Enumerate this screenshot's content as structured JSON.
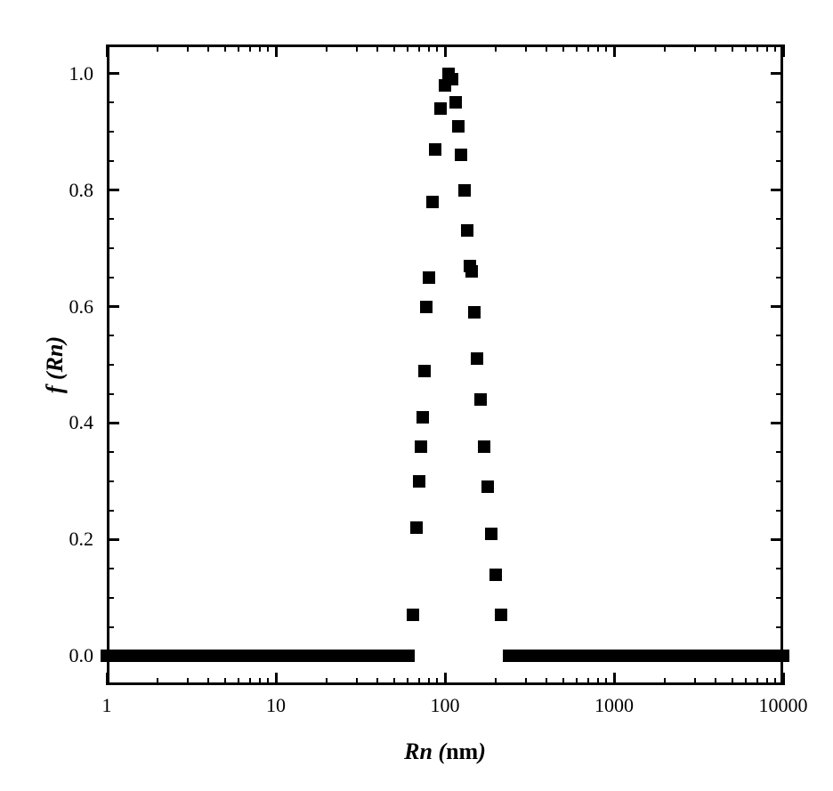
{
  "chart": {
    "type": "scatter",
    "xlabel": "Rn (nm)",
    "ylabel": "f (Rn)",
    "xscale": "log",
    "yscale": "linear",
    "xlim": [
      1,
      10000
    ],
    "ylim": [
      -0.05,
      1.05
    ],
    "background_color": "#ffffff",
    "border_color": "#000000",
    "border_width": 3,
    "label_fontsize": 26,
    "tick_fontsize": 22,
    "marker_style": "square",
    "marker_size": 14,
    "marker_color": "#000000",
    "y_ticks": [
      0.0,
      0.2,
      0.4,
      0.6,
      0.8,
      1.0
    ],
    "y_tick_labels": [
      "0.0",
      "0.2",
      "0.4",
      "0.6",
      "0.8",
      "1.0"
    ],
    "x_ticks": [
      1,
      10,
      100,
      1000,
      10000
    ],
    "x_tick_labels": [
      "1",
      "10",
      "100",
      "1000",
      "10000"
    ],
    "x_minor_ticks_per_decade": [
      2,
      3,
      4,
      5,
      6,
      7,
      8,
      9
    ],
    "y_minor_tick_step": 0.05,
    "major_tick_length": 14,
    "minor_tick_length": 8,
    "major_tick_width": 3,
    "minor_tick_width": 2,
    "data": [
      {
        "x": 1.0,
        "y": 0.0
      },
      {
        "x": 1.1,
        "y": 0.0
      },
      {
        "x": 1.2,
        "y": 0.0
      },
      {
        "x": 1.35,
        "y": 0.0
      },
      {
        "x": 1.5,
        "y": 0.0
      },
      {
        "x": 1.65,
        "y": 0.0
      },
      {
        "x": 1.8,
        "y": 0.0
      },
      {
        "x": 2.0,
        "y": 0.0
      },
      {
        "x": 2.2,
        "y": 0.0
      },
      {
        "x": 2.4,
        "y": 0.0
      },
      {
        "x": 2.7,
        "y": 0.0
      },
      {
        "x": 3.0,
        "y": 0.0
      },
      {
        "x": 3.3,
        "y": 0.0
      },
      {
        "x": 3.6,
        "y": 0.0
      },
      {
        "x": 4.0,
        "y": 0.0
      },
      {
        "x": 4.4,
        "y": 0.0
      },
      {
        "x": 4.8,
        "y": 0.0
      },
      {
        "x": 5.3,
        "y": 0.0
      },
      {
        "x": 5.8,
        "y": 0.0
      },
      {
        "x": 6.4,
        "y": 0.0
      },
      {
        "x": 7.0,
        "y": 0.0
      },
      {
        "x": 7.7,
        "y": 0.0
      },
      {
        "x": 8.5,
        "y": 0.0
      },
      {
        "x": 9.3,
        "y": 0.0
      },
      {
        "x": 10.2,
        "y": 0.0
      },
      {
        "x": 11.2,
        "y": 0.0
      },
      {
        "x": 12.3,
        "y": 0.0
      },
      {
        "x": 13.5,
        "y": 0.0
      },
      {
        "x": 14.8,
        "y": 0.0
      },
      {
        "x": 16.3,
        "y": 0.0
      },
      {
        "x": 17.9,
        "y": 0.0
      },
      {
        "x": 19.7,
        "y": 0.0
      },
      {
        "x": 21.6,
        "y": 0.0
      },
      {
        "x": 23.7,
        "y": 0.0
      },
      {
        "x": 26.0,
        "y": 0.0
      },
      {
        "x": 28.6,
        "y": 0.0
      },
      {
        "x": 31.4,
        "y": 0.0
      },
      {
        "x": 34.5,
        "y": 0.0
      },
      {
        "x": 37.9,
        "y": 0.0
      },
      {
        "x": 41.6,
        "y": 0.0
      },
      {
        "x": 45.7,
        "y": 0.0
      },
      {
        "x": 50.2,
        "y": 0.0
      },
      {
        "x": 55.1,
        "y": 0.0
      },
      {
        "x": 60.5,
        "y": 0.0
      },
      {
        "x": 65,
        "y": 0.07
      },
      {
        "x": 68,
        "y": 0.22
      },
      {
        "x": 70,
        "y": 0.3
      },
      {
        "x": 72,
        "y": 0.36
      },
      {
        "x": 74,
        "y": 0.41
      },
      {
        "x": 76,
        "y": 0.49
      },
      {
        "x": 78,
        "y": 0.6
      },
      {
        "x": 80,
        "y": 0.65
      },
      {
        "x": 84,
        "y": 0.78
      },
      {
        "x": 88,
        "y": 0.87
      },
      {
        "x": 94,
        "y": 0.94
      },
      {
        "x": 100,
        "y": 0.98
      },
      {
        "x": 105,
        "y": 1.0
      },
      {
        "x": 110,
        "y": 0.99
      },
      {
        "x": 115,
        "y": 0.95
      },
      {
        "x": 120,
        "y": 0.91
      },
      {
        "x": 125,
        "y": 0.86
      },
      {
        "x": 130,
        "y": 0.8
      },
      {
        "x": 135,
        "y": 0.73
      },
      {
        "x": 140,
        "y": 0.67
      },
      {
        "x": 143,
        "y": 0.66
      },
      {
        "x": 150,
        "y": 0.59
      },
      {
        "x": 155,
        "y": 0.51
      },
      {
        "x": 162,
        "y": 0.44
      },
      {
        "x": 170,
        "y": 0.36
      },
      {
        "x": 178,
        "y": 0.29
      },
      {
        "x": 188,
        "y": 0.21
      },
      {
        "x": 200,
        "y": 0.14
      },
      {
        "x": 215,
        "y": 0.07
      },
      {
        "x": 240,
        "y": 0.0
      },
      {
        "x": 263,
        "y": 0.0
      },
      {
        "x": 289,
        "y": 0.0
      },
      {
        "x": 318,
        "y": 0.0
      },
      {
        "x": 349,
        "y": 0.0
      },
      {
        "x": 383,
        "y": 0.0
      },
      {
        "x": 421,
        "y": 0.0
      },
      {
        "x": 462,
        "y": 0.0
      },
      {
        "x": 508,
        "y": 0.0
      },
      {
        "x": 558,
        "y": 0.0
      },
      {
        "x": 613,
        "y": 0.0
      },
      {
        "x": 673,
        "y": 0.0
      },
      {
        "x": 739,
        "y": 0.0
      },
      {
        "x": 812,
        "y": 0.0
      },
      {
        "x": 892,
        "y": 0.0
      },
      {
        "x": 980,
        "y": 0.0
      },
      {
        "x": 1076,
        "y": 0.0
      },
      {
        "x": 1182,
        "y": 0.0
      },
      {
        "x": 1298,
        "y": 0.0
      },
      {
        "x": 1426,
        "y": 0.0
      },
      {
        "x": 1566,
        "y": 0.0
      },
      {
        "x": 1720,
        "y": 0.0
      },
      {
        "x": 1889,
        "y": 0.0
      },
      {
        "x": 2075,
        "y": 0.0
      },
      {
        "x": 2279,
        "y": 0.0
      },
      {
        "x": 2503,
        "y": 0.0
      },
      {
        "x": 2749,
        "y": 0.0
      },
      {
        "x": 3020,
        "y": 0.0
      },
      {
        "x": 3317,
        "y": 0.0
      },
      {
        "x": 3643,
        "y": 0.0
      },
      {
        "x": 4001,
        "y": 0.0
      },
      {
        "x": 4395,
        "y": 0.0
      },
      {
        "x": 4827,
        "y": 0.0
      },
      {
        "x": 5302,
        "y": 0.0
      },
      {
        "x": 5823,
        "y": 0.0
      },
      {
        "x": 6396,
        "y": 0.0
      },
      {
        "x": 7025,
        "y": 0.0
      },
      {
        "x": 7716,
        "y": 0.0
      },
      {
        "x": 8475,
        "y": 0.0
      },
      {
        "x": 9308,
        "y": 0.0
      },
      {
        "x": 10000,
        "y": 0.0
      }
    ]
  }
}
